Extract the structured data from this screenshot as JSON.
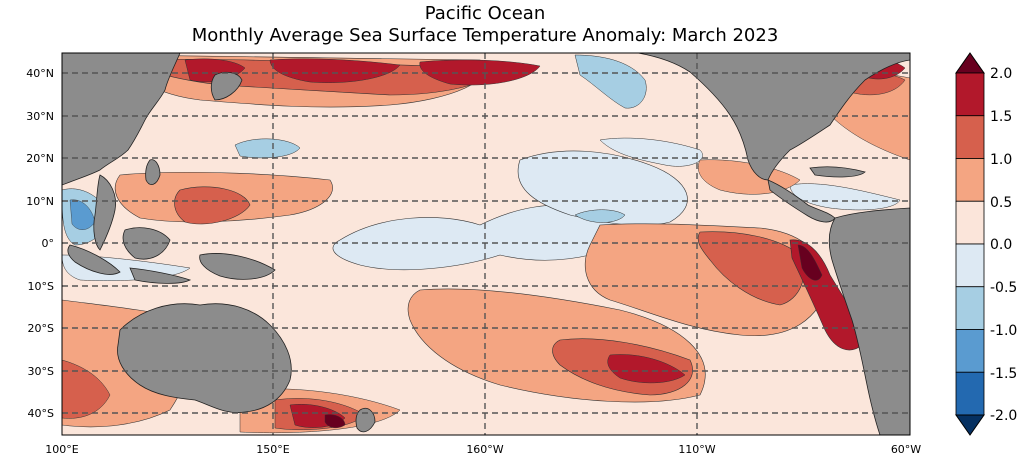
{
  "title": "Pacific Ocean",
  "subtitle": "Monthly Average Sea Surface Temperature Anomaly: March 2023",
  "lat_labels": [
    "40°N",
    "30°N",
    "20°N",
    "10°N",
    "0°",
    "10°S",
    "20°S",
    "30°S",
    "40°S"
  ],
  "lon_labels": [
    "100°E",
    "150°E",
    "160°W",
    "110°W",
    "60°W"
  ],
  "colorbar": {
    "ticks": [
      "2.0",
      "1.5",
      "1.0",
      "0.5",
      "0.0",
      "-0.5",
      "-1.0",
      "-1.5",
      "-2.0"
    ],
    "colors": [
      "#b2182b",
      "#d6604d",
      "#f4a582",
      "#fbe5da",
      "#dde9f3",
      "#a6cee3",
      "#5a9bd0",
      "#2369b0"
    ],
    "extend_high_color": "#67001f",
    "extend_low_color": "#053061"
  },
  "land_color": "#8c8c8c",
  "ocean_neutral_color": "#fbe9df"
}
